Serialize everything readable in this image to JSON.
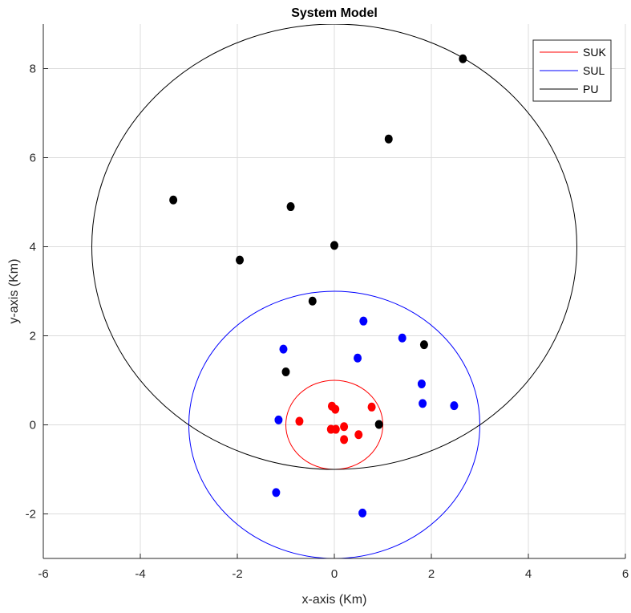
{
  "chart_data": {
    "type": "scatter",
    "title": "System Model",
    "xlabel": "x-axis (Km)",
    "ylabel": "y-axis (Km)",
    "xlim": [
      -6,
      6
    ],
    "ylim": [
      -3,
      9
    ],
    "xticks": [
      -6,
      -4,
      -2,
      0,
      2,
      4,
      6
    ],
    "yticks": [
      -2,
      0,
      2,
      4,
      6,
      8
    ],
    "xtick_labels": [
      "-6",
      "-4",
      "-2",
      "0",
      "2",
      "4",
      "6"
    ],
    "ytick_labels": [
      "-2",
      "0",
      "2",
      "4",
      "6",
      "8"
    ],
    "grid": true,
    "legend_position": "top-right",
    "series": [
      {
        "name": "SUK",
        "color": "#ff0000",
        "circle": {
          "center": [
            0,
            0
          ],
          "radius": 1
        },
        "points": [
          [
            -0.72,
            0.08
          ],
          [
            -0.05,
            0.42
          ],
          [
            0.02,
            0.35
          ],
          [
            0.77,
            0.4
          ],
          [
            -0.07,
            -0.1
          ],
          [
            0.03,
            -0.1
          ],
          [
            0.2,
            -0.04
          ],
          [
            0.5,
            -0.22
          ],
          [
            0.2,
            -0.33
          ]
        ]
      },
      {
        "name": "SUL",
        "color": "#0000ff",
        "circle": {
          "center": [
            0,
            0
          ],
          "radius": 3
        },
        "points": [
          [
            0.6,
            2.33
          ],
          [
            1.4,
            1.95
          ],
          [
            -1.05,
            1.7
          ],
          [
            0.48,
            1.5
          ],
          [
            1.8,
            0.92
          ],
          [
            1.82,
            0.48
          ],
          [
            2.47,
            0.43
          ],
          [
            -1.15,
            0.11
          ],
          [
            -1.2,
            -1.52
          ],
          [
            0.58,
            -1.98
          ]
        ]
      },
      {
        "name": "PU",
        "color": "#000000",
        "circle": {
          "center": [
            0,
            4
          ],
          "radius": 5
        },
        "points": [
          [
            2.65,
            8.22
          ],
          [
            1.12,
            6.42
          ],
          [
            -3.32,
            5.05
          ],
          [
            -0.9,
            4.9
          ],
          [
            0.0,
            4.03
          ],
          [
            -1.95,
            3.7
          ],
          [
            -0.45,
            2.78
          ],
          [
            1.85,
            1.8
          ],
          [
            -1.0,
            1.19
          ],
          [
            0.92,
            0.01
          ]
        ]
      }
    ]
  }
}
